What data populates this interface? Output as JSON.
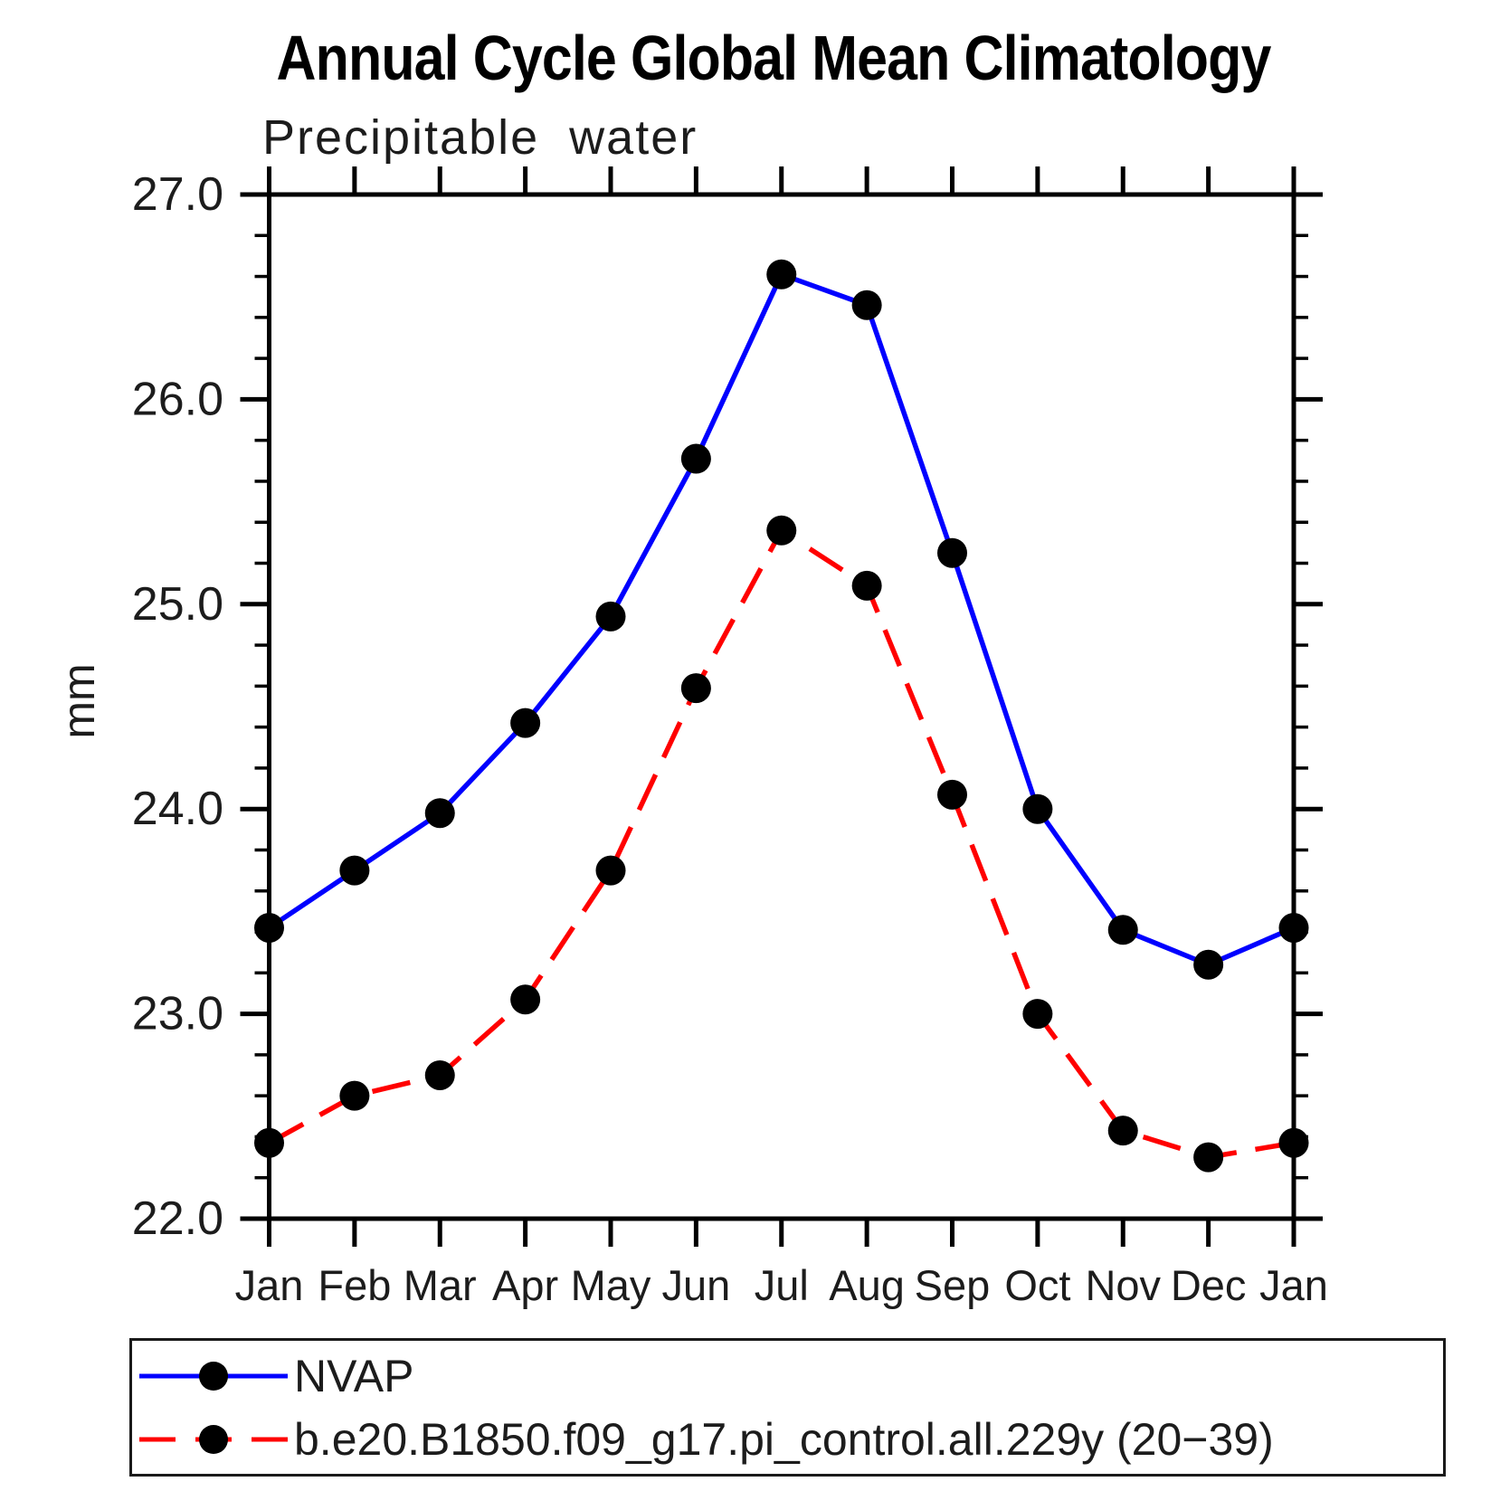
{
  "header": {
    "title": "Annual Cycle Global Mean Climatology",
    "subtitle": "Precipitable water"
  },
  "chart_data": {
    "type": "line",
    "title": "Annual Cycle Global Mean Climatology",
    "subtitle": "Precipitable water",
    "xlabel": "",
    "ylabel": "mm",
    "x_tick_labels": [
      "Jan",
      "Feb",
      "Mar",
      "Apr",
      "May",
      "Jun",
      "Jul",
      "Aug",
      "Sep",
      "Oct",
      "Nov",
      "Dec",
      "Jan"
    ],
    "ylim": [
      22.0,
      27.0
    ],
    "y_major_ticks": [
      22.0,
      23.0,
      24.0,
      25.0,
      26.0,
      27.0
    ],
    "y_tick_labels": [
      "22.0",
      "23.0",
      "24.0",
      "25.0",
      "26.0",
      "27.0"
    ],
    "y_minor_step": 0.2,
    "grid": false,
    "legend_position": "bottom",
    "axis_color": "#000000",
    "series": [
      {
        "name": "NVAP",
        "color": "#0000ff",
        "style": "solid",
        "marker": "circle",
        "marker_color": "#000000",
        "values": [
          23.42,
          23.7,
          23.98,
          24.42,
          24.94,
          25.71,
          26.61,
          26.46,
          25.25,
          24.0,
          23.41,
          23.24,
          23.42
        ]
      },
      {
        "name": "b.e20.B1850.f09_g17.pi_control.all.229y (20−39)",
        "color": "#ff0000",
        "style": "dashed",
        "marker": "circle",
        "marker_color": "#000000",
        "values": [
          22.37,
          22.6,
          22.7,
          23.07,
          23.7,
          24.59,
          25.36,
          25.09,
          24.07,
          23.0,
          22.43,
          22.3,
          22.37
        ]
      }
    ]
  }
}
